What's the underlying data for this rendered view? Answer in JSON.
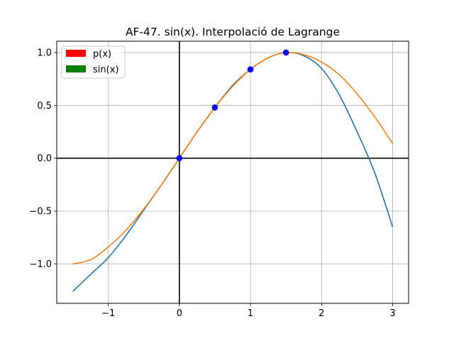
{
  "chart_data": {
    "type": "line",
    "title": "AF-47. sin(x). Interpolació de Lagrange",
    "xlabel": "",
    "ylabel": "",
    "xlim": [
      -1.725,
      3.225
    ],
    "ylim": [
      -1.373,
      1.107
    ],
    "x_ticks": [
      -1,
      0,
      1,
      2,
      3
    ],
    "x_tick_labels": [
      "−1",
      "0",
      "1",
      "2",
      "3"
    ],
    "y_ticks": [
      -1.0,
      -0.5,
      0.0,
      0.5,
      1.0
    ],
    "y_tick_labels": [
      "−1.0",
      "−0.5",
      "0.0",
      "0.5",
      "1.0"
    ],
    "grid": true,
    "legend_position": "upper-left",
    "legend": [
      {
        "label": "p(x)",
        "color": "#ff0000"
      },
      {
        "label": "sin(x)",
        "color": "#008000"
      }
    ],
    "series": [
      {
        "color": "#1f77b4",
        "x": [
          -1.5,
          -1.25,
          -1.0,
          -0.75,
          -0.5,
          -0.25,
          0.0,
          0.25,
          0.5,
          0.75,
          1.0,
          1.25,
          1.5,
          1.75,
          2.0,
          2.25,
          2.5,
          2.75,
          3.0
        ],
        "y": [
          -1.26,
          -1.1,
          -0.94,
          -0.73,
          -0.49,
          -0.25,
          0.0,
          0.25,
          0.48,
          0.69,
          0.84,
          0.95,
          1.0,
          0.97,
          0.85,
          0.6,
          0.25,
          -0.14,
          -0.65
        ]
      },
      {
        "color": "#ff7f0e",
        "x": [
          -1.5,
          -1.25,
          -1.0,
          -0.75,
          -0.5,
          -0.25,
          0.0,
          0.25,
          0.5,
          0.75,
          1.0,
          1.25,
          1.5,
          1.75,
          2.0,
          2.25,
          2.5,
          2.75,
          3.0
        ],
        "y": [
          -1.0,
          -0.96,
          -0.84,
          -0.68,
          -0.48,
          -0.25,
          0.0,
          0.25,
          0.48,
          0.68,
          0.84,
          0.95,
          1.0,
          0.98,
          0.91,
          0.79,
          0.61,
          0.39,
          0.14
        ]
      }
    ],
    "points": {
      "color": "#0000ff",
      "x": [
        0.0,
        0.5,
        1.0,
        1.5
      ],
      "y": [
        0.0,
        0.48,
        0.84,
        1.0
      ]
    }
  }
}
